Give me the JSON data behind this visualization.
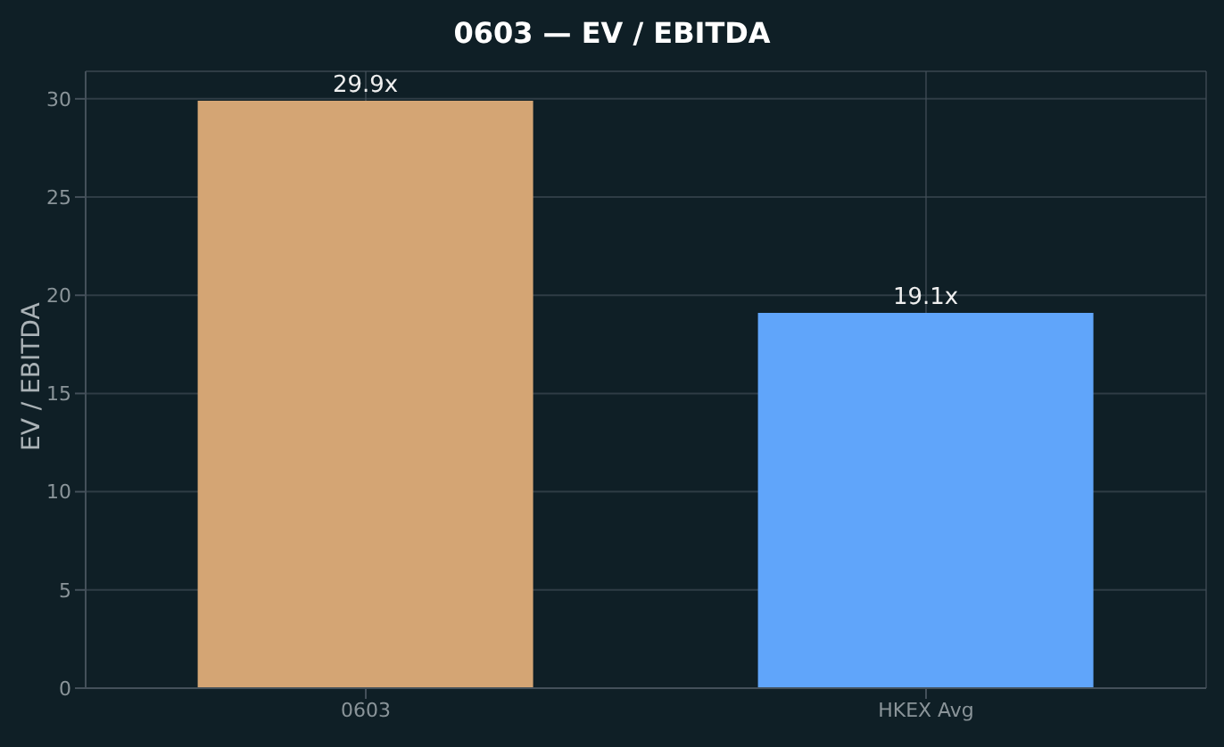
{
  "chart_data": {
    "type": "bar",
    "title": "0603 — EV / EBITDA",
    "ylabel": "EV / EBITDA",
    "categories": [
      "0603",
      "HKEX Avg"
    ],
    "values": [
      29.9,
      19.1
    ],
    "colors": [
      "#d4a574",
      "#60a5fa"
    ],
    "value_labels": [
      "29.9x",
      "19.1x"
    ],
    "ylim": [
      0,
      31.4
    ],
    "yticks": [
      0,
      5,
      10,
      15,
      20,
      25,
      30
    ],
    "grid": true
  }
}
